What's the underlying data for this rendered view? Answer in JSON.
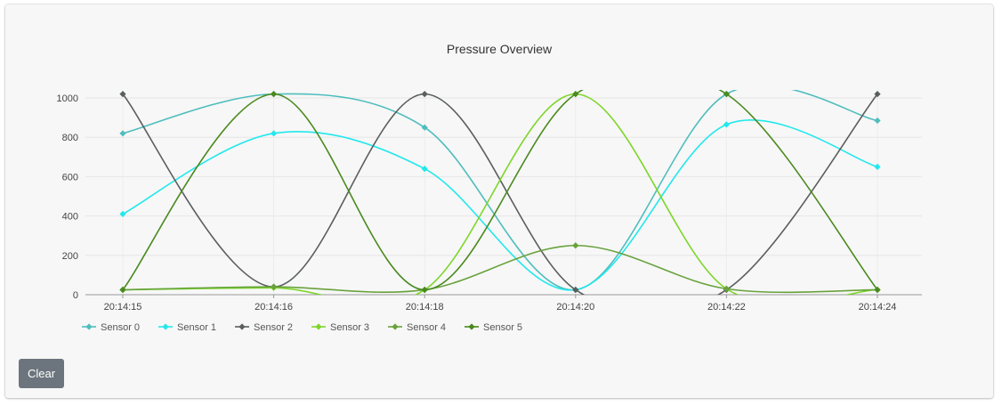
{
  "chart_data": {
    "type": "line",
    "title": "Pressure Overview",
    "x": [
      "20:14:15",
      "20:14:16",
      "20:14:18",
      "20:14:20",
      "20:14:22",
      "20:14:24"
    ],
    "x_tick_labels": [
      "20:14:15",
      "20:14:16",
      "20:14:18",
      "20:14:20",
      "20:14:22",
      "20:14:24"
    ],
    "y_ticks": [
      0,
      200,
      400,
      600,
      800,
      1000
    ],
    "ylim": [
      0,
      1050
    ],
    "grid": true,
    "legend": "bottom-left",
    "series": [
      {
        "name": "Sensor 0",
        "color": "#4fbdbd",
        "values": [
          820,
          1020,
          850,
          25,
          1020,
          885
        ]
      },
      {
        "name": "Sensor 1",
        "color": "#22e8ec",
        "values": [
          410,
          820,
          640,
          25,
          865,
          650
        ]
      },
      {
        "name": "Sensor 2",
        "color": "#5b5e5e",
        "values": [
          1020,
          40,
          1020,
          25,
          25,
          1020
        ]
      },
      {
        "name": "Sensor 3",
        "color": "#7ed62a",
        "values": [
          25,
          35,
          25,
          1020,
          30,
          25
        ]
      },
      {
        "name": "Sensor 4",
        "color": "#68a23c",
        "values": [
          25,
          40,
          25,
          250,
          30,
          25
        ]
      },
      {
        "name": "Sensor 5",
        "color": "#4a8a1f",
        "values": [
          25,
          1020,
          25,
          1020,
          1020,
          25
        ]
      }
    ]
  },
  "controls": {
    "clear_label": "Clear"
  }
}
